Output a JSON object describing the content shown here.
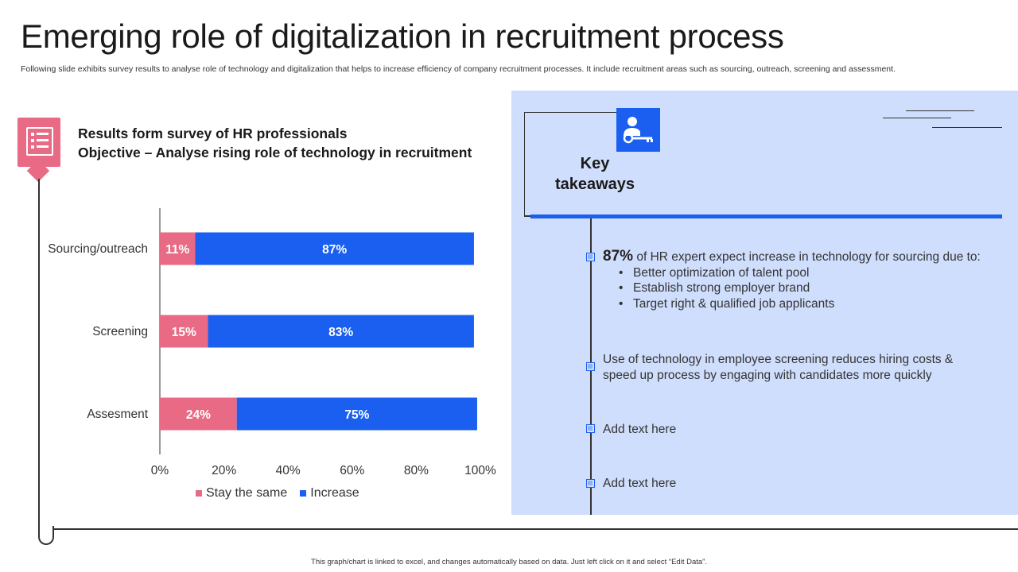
{
  "header": {
    "title": "Emerging role of digitalization in recruitment process",
    "subtitle": "Following slide exhibits survey results to analyse role of technology and digitalization that helps to increase efficiency of company recruitment processes. It include recruitment areas such as sourcing, outreach, screening and assessment."
  },
  "survey": {
    "heading": "Results form survey of HR professionals",
    "objective": "Objective – Analyse rising role of technology in recruitment"
  },
  "chart_data": {
    "type": "bar",
    "orientation": "horizontal",
    "stacked": true,
    "categories": [
      "Sourcing/outreach",
      "Screening",
      "Assesment"
    ],
    "series": [
      {
        "name": "Stay the same",
        "values": [
          11,
          15,
          24
        ],
        "labels": [
          "11%",
          "15%",
          "24%"
        ],
        "color": "#e86a84"
      },
      {
        "name": "Increase",
        "values": [
          87,
          83,
          75
        ],
        "labels": [
          "87%",
          "83%",
          "75%"
        ],
        "color": "#1a5ff0"
      }
    ],
    "xlim": [
      0,
      100
    ],
    "xticks": [
      "0%",
      "20%",
      "40%",
      "60%",
      "80%",
      "100%"
    ],
    "legend_position": "bottom",
    "grid": false
  },
  "takeaways": {
    "title_line1": "Key",
    "title_line2": "takeaways",
    "item1": {
      "big": "87%",
      "text": " of HR expert expect increase in technology for sourcing due to:",
      "bullets": [
        "Better optimization of talent pool",
        "Establish strong employer brand",
        "Target right & qualified job applicants"
      ]
    },
    "item2": "Use of technology in employee screening reduces hiring costs & speed up process by engaging with candidates more quickly",
    "item3": "Add text here",
    "item4": "Add text here"
  },
  "footer": "This graph/chart is linked to excel, and changes automatically based on data. Just left click on it and select “Edit Data”.",
  "colors": {
    "accent_blue": "#1a5ff0",
    "accent_pink": "#e86a84",
    "panel_bg": "#cfdefc"
  }
}
